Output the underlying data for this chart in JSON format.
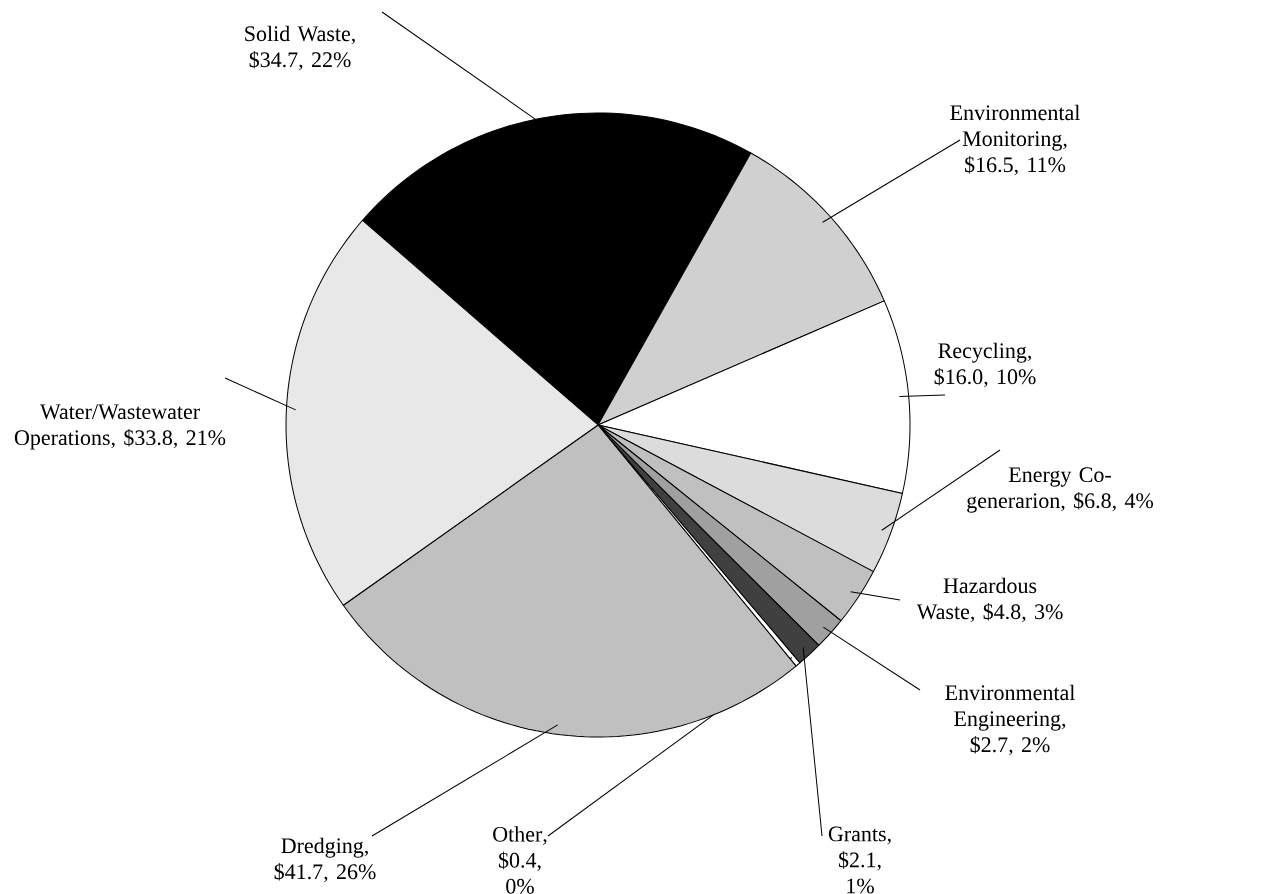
{
  "chart_data": {
    "type": "pie",
    "categories": [
      "Solid Waste",
      "Environmental Monitoring",
      "Recycling",
      "Energy Co-generarion",
      "Hazardous Waste",
      "Environmental Engineering",
      "Grants",
      "Other",
      "Dredging",
      "Water/Wastewater Operations"
    ],
    "values": [
      34.7,
      16.5,
      16.0,
      6.8,
      4.8,
      2.7,
      2.1,
      0.4,
      41.7,
      33.8
    ],
    "value_labels": [
      ", $34.7, 22%",
      ", $16.5, 11%",
      ", $16.0, 10%",
      ", $6.8, 4%",
      ", $4.8, 3%",
      ", $2.7, 2%",
      ", $2.1, 1%",
      ", $0.4, 0%",
      ", $41.7, 26%",
      ", $33.8, 21%"
    ],
    "colors": [
      "#000000",
      "#d0d0d0",
      "#ffffff",
      "#dcdcdc",
      "#c0c0c0",
      "#a0a0a0",
      "#404040",
      "#ffffff",
      "#c0c0c0",
      "#e8e8e8"
    ]
  }
}
